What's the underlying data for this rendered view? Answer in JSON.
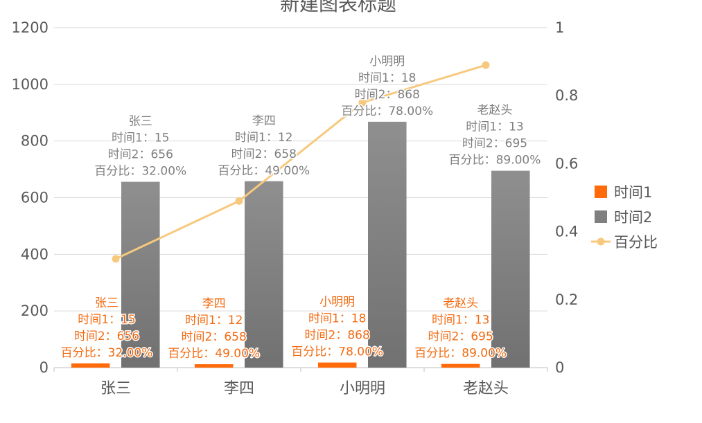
{
  "chart_data": {
    "type": "bar",
    "title": "新建图表标题",
    "categories": [
      "张三",
      "李四",
      "小明明",
      "老赵头"
    ],
    "series": [
      {
        "name": "时间1",
        "type": "bar",
        "axis": "primary",
        "values": [
          15,
          12,
          18,
          13
        ],
        "color": "#FF6A0A",
        "label_color": "#F26B12"
      },
      {
        "name": "时间2",
        "type": "bar",
        "axis": "primary",
        "values": [
          656,
          658,
          868,
          695
        ],
        "color": "#7F7F7F",
        "label_color": "#7F7F7F"
      },
      {
        "name": "百分比",
        "type": "line",
        "axis": "secondary",
        "values": [
          0.32,
          0.49,
          0.78,
          0.89
        ],
        "color": "#F7C97E"
      }
    ],
    "data_labels": [
      [
        "张三",
        "时间1：15",
        "时间2：656",
        "百分比：32.00%"
      ],
      [
        "李四",
        "时间1：12",
        "时间2：658",
        "百分比：49.00%"
      ],
      [
        "小明明",
        "时间1：18",
        "时间2：868",
        "百分比：78.00%"
      ],
      [
        "老赵头",
        "时间1：13",
        "时间2：695",
        "百分比：89.00%"
      ]
    ],
    "ylim": [
      0,
      1200
    ],
    "y_ticks": [
      0,
      200,
      400,
      600,
      800,
      1000,
      1200
    ],
    "y_tick_labels": [
      "0",
      "200",
      "400",
      "600",
      "800",
      "1000",
      "1200"
    ],
    "y2lim": [
      0,
      1
    ],
    "y2_ticks": [
      0,
      0.2,
      0.4,
      0.6,
      0.8,
      1
    ],
    "y2_tick_labels": [
      "0",
      "0.2",
      "0.4",
      "0.6",
      "0.8",
      "1"
    ],
    "xlabel": "",
    "ylabel": "",
    "y2label": "",
    "grid": true,
    "legend": "right"
  }
}
